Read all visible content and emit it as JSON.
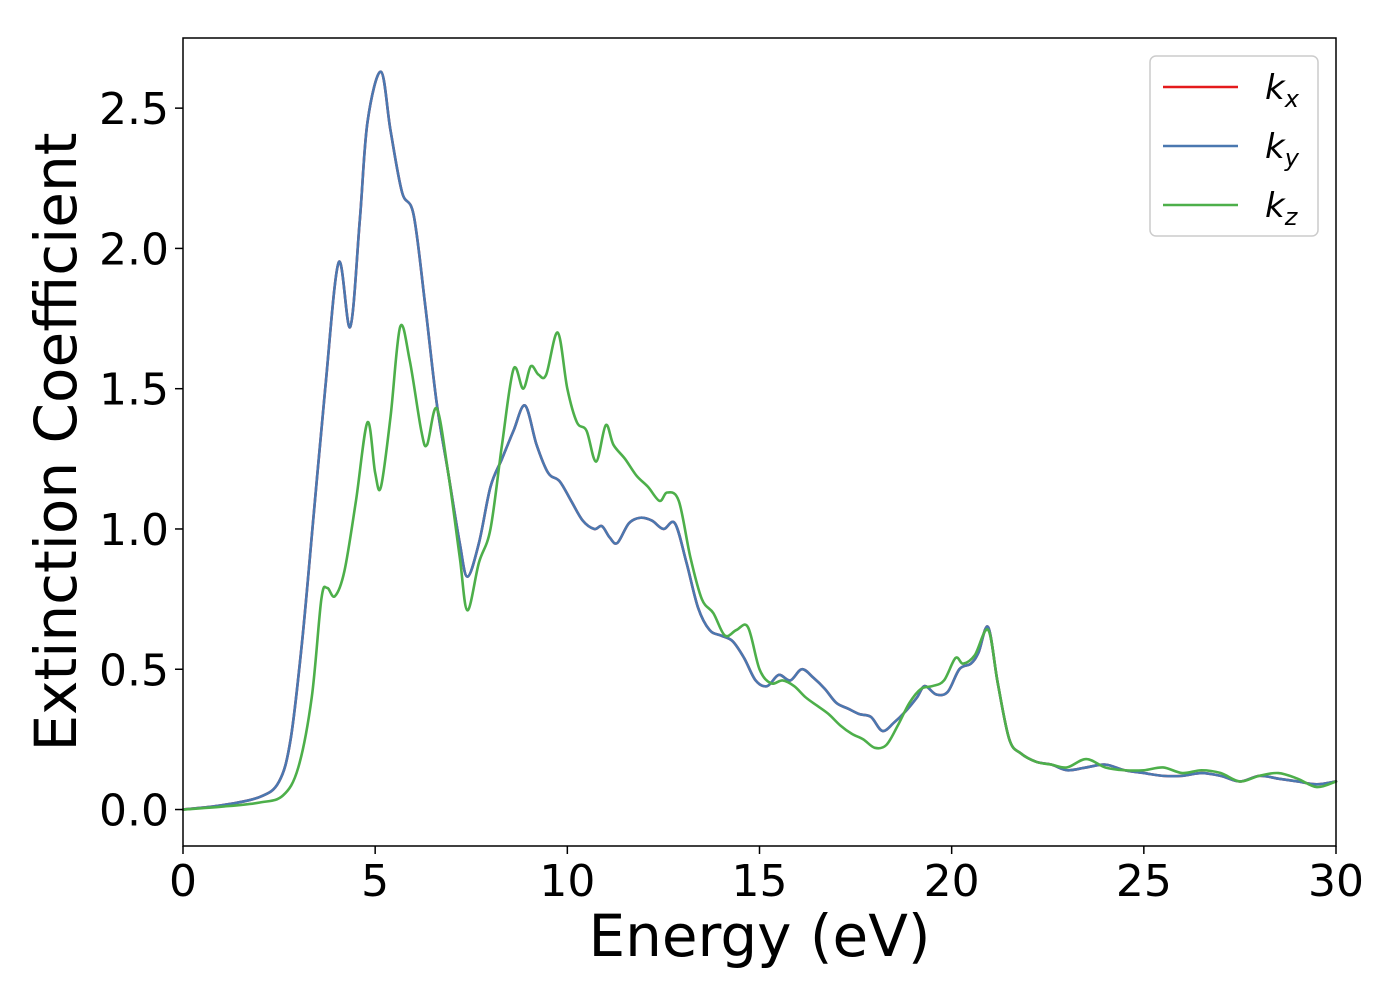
{
  "chart_data": {
    "type": "line",
    "title": "",
    "xlabel": "Energy (eV)",
    "ylabel": "Extinction Coefficient",
    "xlim": [
      0,
      30
    ],
    "ylim": [
      -0.13,
      2.75
    ],
    "xticks": [
      0,
      5,
      10,
      15,
      20,
      25,
      30
    ],
    "yticks": [
      0.0,
      0.5,
      1.0,
      1.5,
      2.0,
      2.5
    ],
    "xtick_labels": [
      "0",
      "5",
      "10",
      "15",
      "20",
      "25",
      "30"
    ],
    "ytick_labels": [
      "0.0",
      "0.5",
      "1.0",
      "1.5",
      "2.0",
      "2.5"
    ],
    "grid": false,
    "legend": "top-right",
    "colors": {
      "kx": "#e41a1c",
      "ky": "#4a78b0",
      "kz": "#4daf4a"
    },
    "series": [
      {
        "name": "k_x",
        "legend_main": "k",
        "legend_sub": "x",
        "color": "#e41a1c",
        "x": [
          0,
          1,
          2,
          2.5,
          2.8,
          3.1,
          3.4,
          3.7,
          4.05,
          4.35,
          4.6,
          4.8,
          5.15,
          5.4,
          5.7,
          6.0,
          6.3,
          6.6,
          6.9,
          7.2,
          7.4,
          7.7,
          8.0,
          8.3,
          8.6,
          8.9,
          9.2,
          9.5,
          9.8,
          10.1,
          10.4,
          10.7,
          10.9,
          11.1,
          11.3,
          11.6,
          11.9,
          12.2,
          12.5,
          12.8,
          13.1,
          13.4,
          13.7,
          14.0,
          14.3,
          14.6,
          14.9,
          15.2,
          15.5,
          15.8,
          16.1,
          16.4,
          16.7,
          17.0,
          17.3,
          17.6,
          17.9,
          18.2,
          18.5,
          18.8,
          19.1,
          19.3,
          19.6,
          19.9,
          20.2,
          20.5,
          20.7,
          20.95,
          21.2,
          21.5,
          21.8,
          22.2,
          22.6,
          23.0,
          23.5,
          24.0,
          24.5,
          25.0,
          25.5,
          26.0,
          26.5,
          27.0,
          27.5,
          28.0,
          28.5,
          29.0,
          29.5,
          30
        ],
        "y": [
          0.0,
          0.015,
          0.045,
          0.1,
          0.25,
          0.6,
          1.05,
          1.5,
          1.95,
          1.72,
          2.1,
          2.45,
          2.63,
          2.42,
          2.2,
          2.12,
          1.8,
          1.45,
          1.2,
          0.95,
          0.83,
          0.95,
          1.15,
          1.25,
          1.35,
          1.44,
          1.3,
          1.2,
          1.17,
          1.1,
          1.03,
          1.0,
          1.01,
          0.97,
          0.95,
          1.02,
          1.04,
          1.03,
          1.0,
          1.02,
          0.88,
          0.72,
          0.64,
          0.62,
          0.6,
          0.54,
          0.46,
          0.44,
          0.48,
          0.46,
          0.5,
          0.47,
          0.43,
          0.38,
          0.36,
          0.34,
          0.33,
          0.28,
          0.31,
          0.35,
          0.4,
          0.44,
          0.41,
          0.42,
          0.5,
          0.52,
          0.56,
          0.65,
          0.45,
          0.25,
          0.2,
          0.17,
          0.16,
          0.14,
          0.15,
          0.16,
          0.14,
          0.13,
          0.12,
          0.12,
          0.13,
          0.12,
          0.1,
          0.12,
          0.11,
          0.1,
          0.09,
          0.1
        ]
      },
      {
        "name": "k_y",
        "legend_main": "k",
        "legend_sub": "y",
        "color": "#4a78b0",
        "x": [
          0,
          1,
          2,
          2.5,
          2.8,
          3.1,
          3.4,
          3.7,
          4.05,
          4.35,
          4.6,
          4.8,
          5.15,
          5.4,
          5.7,
          6.0,
          6.3,
          6.6,
          6.9,
          7.2,
          7.4,
          7.7,
          8.0,
          8.3,
          8.6,
          8.9,
          9.2,
          9.5,
          9.8,
          10.1,
          10.4,
          10.7,
          10.9,
          11.1,
          11.3,
          11.6,
          11.9,
          12.2,
          12.5,
          12.8,
          13.1,
          13.4,
          13.7,
          14.0,
          14.3,
          14.6,
          14.9,
          15.2,
          15.5,
          15.8,
          16.1,
          16.4,
          16.7,
          17.0,
          17.3,
          17.6,
          17.9,
          18.2,
          18.5,
          18.8,
          19.1,
          19.3,
          19.6,
          19.9,
          20.2,
          20.5,
          20.7,
          20.95,
          21.2,
          21.5,
          21.8,
          22.2,
          22.6,
          23.0,
          23.5,
          24.0,
          24.5,
          25.0,
          25.5,
          26.0,
          26.5,
          27.0,
          27.5,
          28.0,
          28.5,
          29.0,
          29.5,
          30
        ],
        "y": [
          0.0,
          0.015,
          0.045,
          0.1,
          0.25,
          0.6,
          1.05,
          1.5,
          1.95,
          1.72,
          2.1,
          2.45,
          2.63,
          2.42,
          2.2,
          2.12,
          1.8,
          1.45,
          1.2,
          0.95,
          0.83,
          0.95,
          1.15,
          1.25,
          1.35,
          1.44,
          1.3,
          1.2,
          1.17,
          1.1,
          1.03,
          1.0,
          1.01,
          0.97,
          0.95,
          1.02,
          1.04,
          1.03,
          1.0,
          1.02,
          0.88,
          0.72,
          0.64,
          0.62,
          0.6,
          0.54,
          0.46,
          0.44,
          0.48,
          0.46,
          0.5,
          0.47,
          0.43,
          0.38,
          0.36,
          0.34,
          0.33,
          0.28,
          0.31,
          0.35,
          0.4,
          0.44,
          0.41,
          0.42,
          0.5,
          0.52,
          0.56,
          0.65,
          0.45,
          0.25,
          0.2,
          0.17,
          0.16,
          0.14,
          0.15,
          0.16,
          0.14,
          0.13,
          0.12,
          0.12,
          0.13,
          0.12,
          0.1,
          0.12,
          0.11,
          0.1,
          0.09,
          0.1
        ]
      },
      {
        "name": "k_z",
        "legend_main": "k",
        "legend_sub": "z",
        "color": "#4daf4a",
        "x": [
          0,
          1,
          2,
          2.6,
          3.0,
          3.35,
          3.6,
          3.75,
          3.95,
          4.2,
          4.5,
          4.8,
          5.0,
          5.15,
          5.4,
          5.65,
          5.9,
          6.2,
          6.35,
          6.6,
          6.9,
          7.2,
          7.4,
          7.7,
          8.0,
          8.3,
          8.6,
          8.85,
          9.05,
          9.25,
          9.45,
          9.75,
          10.0,
          10.25,
          10.5,
          10.75,
          11.0,
          11.2,
          11.5,
          11.8,
          12.1,
          12.4,
          12.6,
          12.9,
          13.2,
          13.5,
          13.8,
          14.1,
          14.4,
          14.7,
          15.0,
          15.3,
          15.6,
          15.9,
          16.2,
          16.5,
          16.8,
          17.1,
          17.4,
          17.7,
          18.0,
          18.3,
          18.6,
          18.9,
          19.2,
          19.5,
          19.8,
          20.1,
          20.3,
          20.6,
          20.95,
          21.2,
          21.5,
          21.8,
          22.2,
          22.6,
          23.0,
          23.5,
          24.0,
          24.5,
          25.0,
          25.5,
          26.0,
          26.5,
          27.0,
          27.5,
          28.0,
          28.5,
          29.0,
          29.5,
          30
        ],
        "y": [
          0.0,
          0.01,
          0.025,
          0.05,
          0.15,
          0.4,
          0.75,
          0.79,
          0.76,
          0.85,
          1.1,
          1.38,
          1.2,
          1.15,
          1.4,
          1.72,
          1.6,
          1.35,
          1.3,
          1.43,
          1.2,
          0.9,
          0.71,
          0.88,
          1.0,
          1.3,
          1.57,
          1.5,
          1.58,
          1.55,
          1.55,
          1.7,
          1.5,
          1.38,
          1.35,
          1.24,
          1.37,
          1.3,
          1.25,
          1.19,
          1.15,
          1.1,
          1.13,
          1.1,
          0.9,
          0.75,
          0.7,
          0.62,
          0.64,
          0.65,
          0.5,
          0.45,
          0.46,
          0.44,
          0.4,
          0.37,
          0.34,
          0.3,
          0.27,
          0.25,
          0.22,
          0.23,
          0.3,
          0.38,
          0.43,
          0.44,
          0.46,
          0.54,
          0.52,
          0.55,
          0.64,
          0.45,
          0.25,
          0.2,
          0.17,
          0.16,
          0.15,
          0.18,
          0.15,
          0.14,
          0.14,
          0.15,
          0.13,
          0.14,
          0.13,
          0.1,
          0.12,
          0.13,
          0.11,
          0.08,
          0.1
        ]
      }
    ]
  }
}
